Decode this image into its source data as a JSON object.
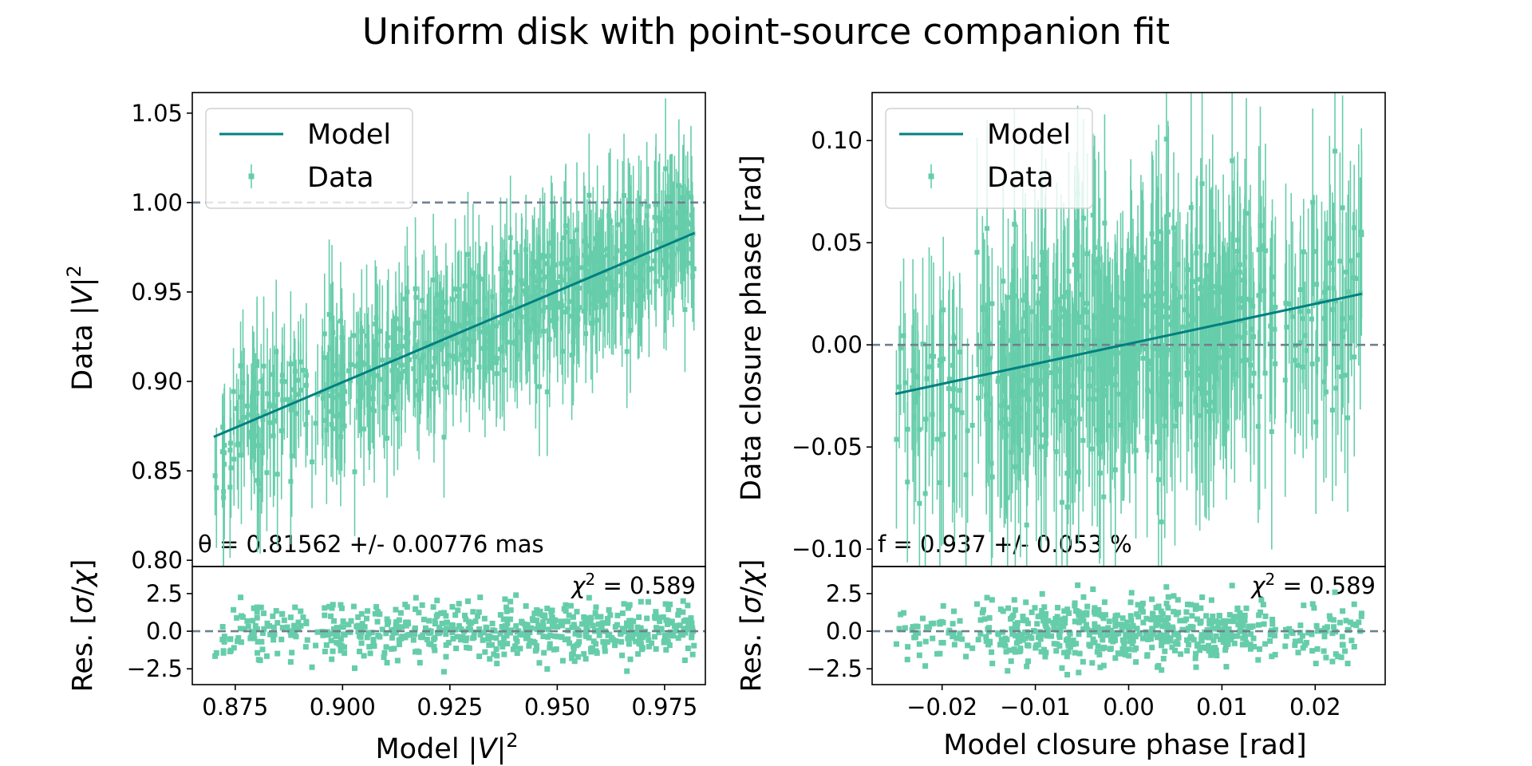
{
  "title": "Uniform disk with point-source companion fit",
  "colors": {
    "data": "#66cdaa",
    "model": "#008080",
    "ref": "#708090"
  },
  "chart_data": [
    {
      "type": "scatter",
      "id": "v2",
      "title": "Uniform disk with point-source companion fit",
      "xlabel": "Model |V|²",
      "ylabel": "Data |V|²",
      "reslabel": "Res. [σ/χ]",
      "xlim": [
        0.865,
        0.9845
      ],
      "ylim": [
        0.7965,
        1.0615
      ],
      "reslim": [
        -3.55,
        4.3
      ],
      "xticks": [
        0.875,
        0.9,
        0.925,
        0.95,
        0.975
      ],
      "xticklabels": [
        "0.875",
        "0.900",
        "0.925",
        "0.950",
        "0.975"
      ],
      "yticks": [
        0.8,
        0.85,
        0.9,
        0.95,
        1.0,
        1.05
      ],
      "yticklabels": [
        "0.80",
        "0.85",
        "0.90",
        "0.95",
        "1.00",
        "1.05"
      ],
      "resticks": [
        -2.5,
        0.0,
        2.5
      ],
      "resticklabels": [
        "−2.5",
        "0.0",
        "2.5"
      ],
      "reference_line_y": 1.0,
      "model_line": {
        "x": [
          0.87,
          0.982
        ],
        "y": [
          0.869,
          0.983
        ]
      },
      "data_points": {
        "n": 650,
        "x_range": [
          0.87,
          0.982
        ],
        "mean_error": 0.03,
        "residual_spread": 1.0
      },
      "legend": [
        "Model",
        "Data"
      ],
      "legend_loc": "upper left",
      "fit_annotation": "θ = 0.81562 +/- 0.00776 mas",
      "chi2_annotation": "χ² = 0.589"
    },
    {
      "type": "scatter",
      "id": "cp",
      "xlabel": "Model closure phase [rad]",
      "ylabel": "Data closure phase [rad]",
      "reslabel": "Res. [σ/χ]",
      "xlim": [
        -0.0275,
        0.0275
      ],
      "ylim": [
        -0.1085,
        0.1235
      ],
      "reslim": [
        -3.55,
        4.3
      ],
      "xticks": [
        -0.02,
        -0.01,
        0.0,
        0.01,
        0.02
      ],
      "xticklabels": [
        "−0.02",
        "−0.01",
        "0.00",
        "0.01",
        "0.02"
      ],
      "yticks": [
        -0.1,
        -0.05,
        0.0,
        0.05,
        0.1
      ],
      "yticklabels": [
        "−0.10",
        "−0.05",
        "0.00",
        "0.05",
        "0.10"
      ],
      "resticks": [
        -2.5,
        0.0,
        2.5
      ],
      "resticklabels": [
        "−2.5",
        "0.0",
        "2.5"
      ],
      "reference_line_y": 0.0,
      "model_line": {
        "x": [
          -0.025,
          0.025
        ],
        "y": [
          -0.024,
          0.025
        ]
      },
      "data_points": {
        "n": 650,
        "x_range": [
          -0.025,
          0.025
        ],
        "mean_error": 0.042,
        "residual_spread": 1.1
      },
      "legend": [
        "Model",
        "Data"
      ],
      "legend_loc": "upper left",
      "fit_annotation": "f = 0.937 +/- 0.053 %",
      "chi2_annotation": "χ² = 0.589"
    }
  ]
}
